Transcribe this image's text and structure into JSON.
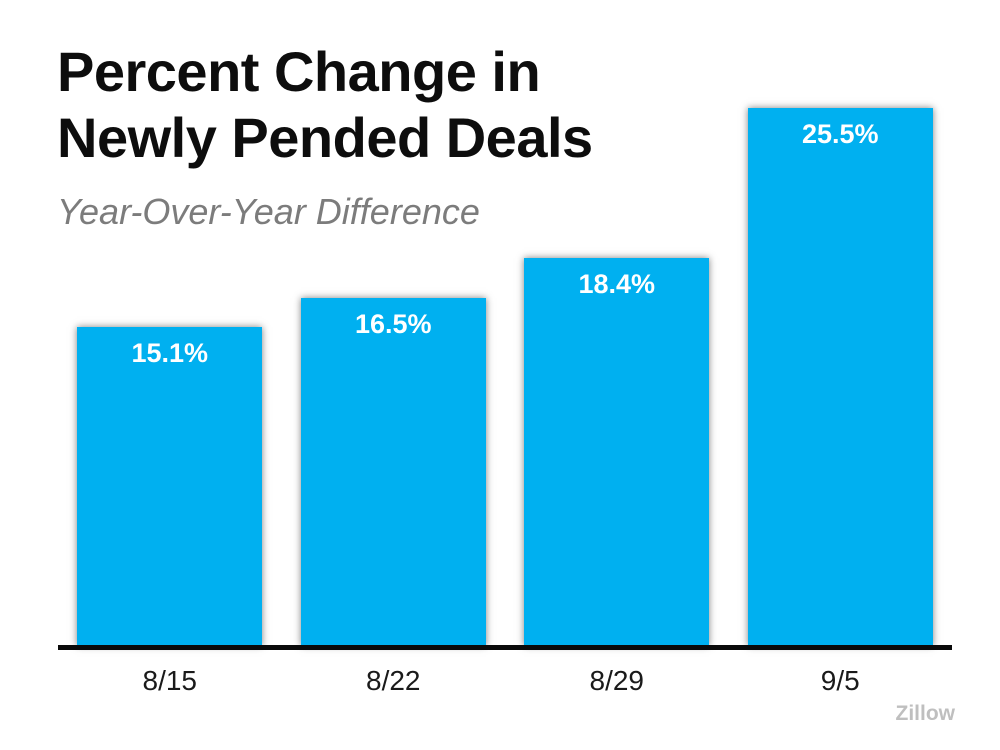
{
  "header": {
    "title_lines": [
      "Percent Change in",
      "Newly Pended Deals"
    ],
    "subtitle": "Year-Over-Year Difference"
  },
  "source": {
    "label": "Zillow"
  },
  "chart_data": {
    "type": "bar",
    "title": "Percent Change in Newly Pended Deals",
    "subtitle": "Year-Over-Year Difference",
    "categories": [
      "8/15",
      "8/22",
      "8/29",
      "9/5"
    ],
    "values": [
      15.1,
      16.5,
      18.4,
      25.5
    ],
    "value_labels": [
      "15.1%",
      "16.5%",
      "18.4%",
      "25.5%"
    ],
    "unit": "percent",
    "xlabel": "",
    "ylabel": "",
    "ylim": [
      0,
      27
    ],
    "grid": false,
    "legend": false,
    "y_axis_visible": false,
    "bar_color": "#00b0f0",
    "bar_label_color": "#ffffff",
    "axis_line_color": "#0a0a0a",
    "source": "Zillow"
  }
}
